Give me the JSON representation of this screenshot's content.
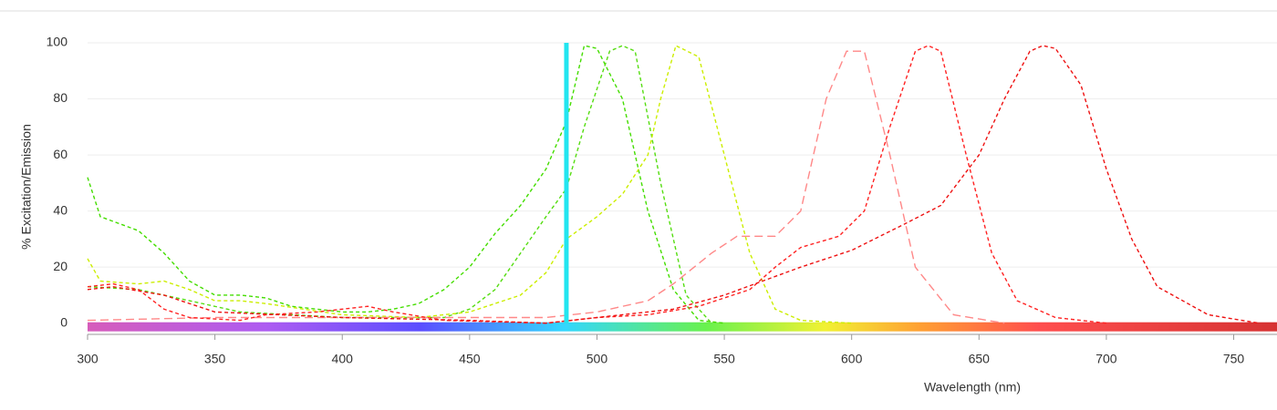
{
  "chart_data": {
    "type": "line",
    "x_label": "Wavelength (nm)",
    "y_label": "% Excitation/Emission",
    "xlim": [
      300,
      767
    ],
    "ylim": [
      -4,
      100
    ],
    "xticks": [
      300,
      350,
      400,
      450,
      500,
      550,
      600,
      650,
      700,
      750
    ],
    "yticks": [
      0,
      20,
      40,
      60,
      80,
      100
    ],
    "grid": true,
    "laser_line": {
      "value": 488,
      "color": "#22e5f0"
    },
    "series": [
      {
        "color": "#44dd00",
        "dash": "4 3",
        "x": [
          300,
          305,
          320,
          330,
          340,
          350,
          360,
          370,
          380,
          390,
          400,
          410,
          420,
          430,
          440,
          450,
          460,
          470,
          480,
          488,
          495,
          500,
          510,
          520,
          530,
          540,
          550
        ],
        "values": [
          52,
          38,
          33,
          25,
          15,
          10,
          10,
          9,
          6,
          5,
          4,
          4,
          5,
          7,
          12,
          20,
          32,
          42,
          55,
          72,
          99,
          98,
          80,
          40,
          12,
          1,
          0
        ]
      },
      {
        "color": "#55dd11",
        "dash": "4 3",
        "x": [
          300,
          320,
          340,
          360,
          380,
          400,
          420,
          440,
          450,
          460,
          470,
          480,
          488,
          495,
          505,
          510,
          515,
          525,
          535,
          545
        ],
        "values": [
          13,
          12,
          8,
          4,
          3,
          2,
          2,
          2,
          5,
          12,
          25,
          38,
          48,
          70,
          97,
          99,
          97,
          50,
          10,
          0
        ]
      },
      {
        "color": "#ccee00",
        "dash": "4 3",
        "x": [
          300,
          305,
          320,
          330,
          340,
          350,
          360,
          370,
          400,
          430,
          450,
          470,
          480,
          488,
          500,
          510,
          520,
          525,
          531,
          540,
          550,
          560,
          570,
          580,
          600
        ],
        "values": [
          23,
          15,
          14,
          15,
          12,
          8,
          8,
          7,
          3,
          2,
          4,
          10,
          18,
          30,
          38,
          46,
          60,
          80,
          99,
          95,
          60,
          25,
          5,
          1,
          0
        ]
      },
      {
        "color": "#ff8888",
        "dash": "9 5",
        "x": [
          300,
          350,
          400,
          450,
          480,
          500,
          520,
          530,
          545,
          555,
          570,
          580,
          590,
          598,
          605,
          615,
          625,
          640,
          660
        ],
        "values": [
          1,
          2,
          2,
          2,
          2,
          4,
          8,
          14,
          25,
          31,
          31,
          40,
          80,
          97,
          97,
          60,
          20,
          3,
          0
        ]
      },
      {
        "color": "#ff2222",
        "dash": "4 3",
        "x": [
          300,
          310,
          320,
          330,
          340,
          360,
          370,
          390,
          410,
          420,
          440,
          480,
          500,
          520,
          540,
          560,
          570,
          580,
          595,
          605,
          615,
          625,
          630,
          635,
          645,
          655,
          665,
          680,
          700
        ],
        "values": [
          13,
          14,
          12,
          5,
          2,
          1,
          3,
          4,
          6,
          4,
          1,
          0,
          2,
          3,
          6,
          12,
          20,
          27,
          31,
          40,
          70,
          97,
          99,
          97,
          60,
          25,
          8,
          2,
          0
        ]
      },
      {
        "color": "#ee1111",
        "dash": "4 3",
        "x": [
          300,
          310,
          330,
          350,
          400,
          450,
          480,
          500,
          530,
          550,
          565,
          580,
          600,
          620,
          635,
          650,
          660,
          670,
          675,
          680,
          690,
          700,
          710,
          720,
          740,
          760
        ],
        "values": [
          12,
          13,
          10,
          4,
          2,
          1,
          0,
          2,
          5,
          10,
          15,
          20,
          26,
          35,
          42,
          60,
          80,
          97,
          99,
          98,
          85,
          55,
          30,
          13,
          3,
          0
        ]
      }
    ]
  }
}
